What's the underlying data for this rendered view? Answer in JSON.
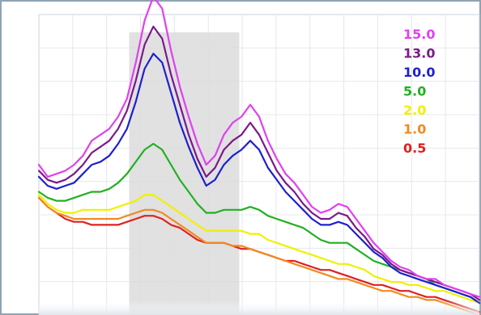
{
  "chart_data": {
    "type": "line",
    "title": "",
    "xlabel": "",
    "ylabel": "",
    "ylim": [
      0,
      100
    ],
    "xlim": [
      0,
      100
    ],
    "grid": true,
    "legend_position": "top-right",
    "highlight_band": {
      "x_from": 20.5,
      "x_to": 45.5
    },
    "x": [
      0,
      2,
      4,
      6,
      8,
      10,
      12,
      14,
      16,
      18,
      20,
      22,
      24,
      26,
      28,
      30,
      32,
      34,
      36,
      38,
      40,
      42,
      44,
      46,
      48,
      50,
      52,
      54,
      56,
      58,
      60,
      62,
      64,
      66,
      68,
      70,
      72,
      74,
      76,
      78,
      80,
      82,
      84,
      86,
      88,
      90,
      92,
      94,
      96,
      98,
      100
    ],
    "series": [
      {
        "name": "15.0",
        "color": "#e040f0",
        "values": [
          50,
          46,
          47,
          48,
          50,
          53,
          58,
          60,
          62,
          66,
          72,
          84,
          98,
          106,
          102,
          88,
          76,
          66,
          57,
          50,
          53,
          60,
          64,
          66,
          70,
          66,
          58,
          52,
          47,
          44,
          40,
          36,
          34,
          35,
          37,
          36,
          32,
          28,
          24,
          21,
          18,
          16,
          15,
          13,
          12,
          12,
          10,
          9,
          8,
          7,
          6
        ]
      },
      {
        "name": "13.0",
        "color": "#7b1a88",
        "values": [
          48,
          45,
          44,
          45,
          47,
          50,
          54,
          56,
          58,
          62,
          68,
          78,
          90,
          96,
          92,
          80,
          70,
          60,
          52,
          46,
          49,
          55,
          58,
          60,
          64,
          60,
          54,
          48,
          44,
          41,
          37,
          34,
          32,
          32,
          34,
          33,
          29,
          26,
          22,
          20,
          17,
          15,
          14,
          13,
          12,
          11,
          10,
          9,
          8,
          7,
          5
        ]
      },
      {
        "name": "10.0",
        "color": "#1f1fd0",
        "values": [
          46,
          43,
          42,
          43,
          44,
          47,
          50,
          51,
          53,
          57,
          62,
          71,
          82,
          87,
          84,
          74,
          64,
          56,
          49,
          43,
          45,
          50,
          53,
          55,
          58,
          55,
          49,
          45,
          41,
          38,
          35,
          32,
          30,
          30,
          31,
          30,
          27,
          24,
          21,
          19,
          16,
          14,
          13,
          12,
          11,
          10,
          9,
          8,
          7,
          6,
          4
        ]
      },
      {
        "name": "5.0",
        "color": "#22b022",
        "values": [
          41,
          39,
          38,
          38,
          39,
          40,
          41,
          41,
          42,
          44,
          47,
          51,
          55,
          57,
          55,
          50,
          45,
          41,
          37,
          34,
          34,
          35,
          35,
          35,
          36,
          35,
          33,
          32,
          31,
          30,
          29,
          27,
          25,
          24,
          24,
          24,
          22,
          20,
          18,
          17,
          16,
          15,
          14,
          13,
          12,
          10,
          9,
          8,
          7,
          6,
          4
        ]
      },
      {
        "name": "2.0",
        "color": "#f0f000",
        "values": [
          40,
          37,
          35,
          34,
          34,
          35,
          35,
          35,
          35,
          36,
          37,
          38,
          40,
          40,
          38,
          36,
          34,
          32,
          30,
          28,
          28,
          28,
          28,
          28,
          27,
          27,
          25,
          24,
          23,
          22,
          21,
          20,
          19,
          18,
          17,
          17,
          16,
          15,
          13,
          12,
          11,
          11,
          10,
          10,
          9,
          8,
          8,
          7,
          6,
          5,
          4
        ]
      },
      {
        "name": "1.0",
        "color": "#f08a20",
        "values": [
          39,
          36,
          34,
          33,
          32,
          32,
          32,
          32,
          32,
          32,
          33,
          34,
          35,
          35,
          34,
          32,
          30,
          28,
          26,
          24,
          24,
          24,
          23,
          23,
          22,
          21,
          20,
          19,
          18,
          17,
          16,
          15,
          14,
          13,
          12,
          12,
          11,
          10,
          9,
          8,
          8,
          7,
          6,
          6,
          5,
          5,
          4,
          3,
          2,
          1,
          0
        ]
      },
      {
        "name": "0.5",
        "color": "#e02020",
        "values": [
          39,
          36,
          34,
          32,
          31,
          31,
          30,
          30,
          30,
          30,
          31,
          32,
          33,
          33,
          32,
          30,
          29,
          27,
          25,
          24,
          24,
          24,
          23,
          22,
          22,
          21,
          20,
          19,
          18,
          18,
          17,
          16,
          15,
          15,
          14,
          13,
          12,
          11,
          10,
          10,
          9,
          8,
          8,
          7,
          6,
          6,
          5,
          4,
          3,
          2,
          1
        ]
      }
    ]
  }
}
